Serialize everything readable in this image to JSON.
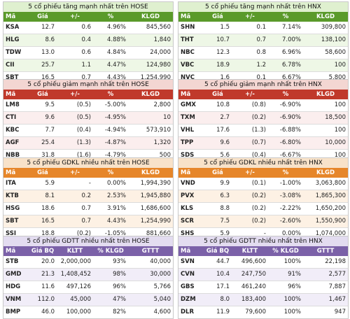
{
  "panels": [
    {
      "id": "up-hose",
      "theme": "green",
      "title": "5 cổ phiếu tăng mạnh nhất trên HOSE",
      "headers": [
        "Mã",
        "Giá",
        "+/-",
        "%",
        "KLGD"
      ],
      "rows": [
        [
          "KSA",
          "12.7",
          "0.6",
          "4.96%",
          "845,560"
        ],
        [
          "HLG",
          "8.6",
          "0.4",
          "4.88%",
          "1,840"
        ],
        [
          "TDW",
          "13.0",
          "0.6",
          "4.84%",
          "24,000"
        ],
        [
          "CII",
          "25.7",
          "1.1",
          "4.47%",
          "124,980"
        ],
        [
          "SBT",
          "16.5",
          "0.7",
          "4.43%",
          "1,254,990"
        ]
      ]
    },
    {
      "id": "up-hnx",
      "theme": "green",
      "title": "5 cổ phiếu tăng mạnh nhất trên HNX",
      "headers": [
        "Mã",
        "Giá",
        "+/-",
        "%",
        "KLGD"
      ],
      "rows": [
        [
          "SHN",
          "1.5",
          "0.1",
          "7.14%",
          "309,800"
        ],
        [
          "THT",
          "10.7",
          "0.7",
          "7.00%",
          "138,100"
        ],
        [
          "NBC",
          "12.3",
          "0.8",
          "6.96%",
          "58,600"
        ],
        [
          "VBC",
          "18.9",
          "1.2",
          "6.78%",
          "100"
        ],
        [
          "NVC",
          "1.6",
          "0.1",
          "6.67%",
          "5,800"
        ]
      ]
    },
    {
      "id": "down-hose",
      "theme": "red",
      "title": "5 cổ phiếu giảm mạnh nhất trên HOSE",
      "headers": [
        "Mã",
        "Giá",
        "+/-",
        "%",
        "KLGD"
      ],
      "rows": [
        [
          "LM8",
          "9.5",
          "(0.5)",
          "-5.00%",
          "2,800"
        ],
        [
          "CTI",
          "9.6",
          "(0.5)",
          "-4.95%",
          "10"
        ],
        [
          "KBC",
          "7.7",
          "(0.4)",
          "-4.94%",
          "573,910"
        ],
        [
          "AGF",
          "25.4",
          "(1.3)",
          "-4.87%",
          "1,320"
        ],
        [
          "NBB",
          "31.8",
          "(1.6)",
          "-4.79%",
          "500"
        ]
      ]
    },
    {
      "id": "down-hnx",
      "theme": "red",
      "title": "5 cổ phiếu giảm mạnh nhất trên HNX",
      "headers": [
        "Mã",
        "Giá",
        "+/-",
        "%",
        "KLGD"
      ],
      "rows": [
        [
          "GMX",
          "10.8",
          "(0.8)",
          "-6.90%",
          "100"
        ],
        [
          "TXM",
          "2.7",
          "(0.2)",
          "-6.90%",
          "18,500"
        ],
        [
          "VHL",
          "17.6",
          "(1.3)",
          "-6.88%",
          "100"
        ],
        [
          "TPP",
          "9.6",
          "(0.7)",
          "-6.80%",
          "10,000"
        ],
        [
          "SDS",
          "5.6",
          "(0.4)",
          "-6.67%",
          "100"
        ]
      ]
    },
    {
      "id": "vol-hose",
      "theme": "orange",
      "title": "5 cổ phiếu GDKL nhiều nhất trên HOSE",
      "headers": [
        "Mã",
        "Giá",
        "+/-",
        "%",
        "KLGD"
      ],
      "rows": [
        [
          "ITA",
          "5.9",
          "-",
          "0.00%",
          "1,994,390"
        ],
        [
          "KTB",
          "8.1",
          "0.2",
          "2.53%",
          "1,945,880"
        ],
        [
          "HSG",
          "18.6",
          "0.7",
          "3.91%",
          "1,686,600"
        ],
        [
          "SBT",
          "16.5",
          "0.7",
          "4.43%",
          "1,254,990"
        ],
        [
          "SSI",
          "18.8",
          "(0.2)",
          "-1.05%",
          "881,660"
        ]
      ]
    },
    {
      "id": "vol-hnx",
      "theme": "orange",
      "title": "5 cổ phiếu GDKL nhiều nhất trên HNX",
      "headers": [
        "Mã",
        "Giá",
        "+/-",
        "%",
        "KLGD"
      ],
      "rows": [
        [
          "VND",
          "9.9",
          "(0.1)",
          "-1.00%",
          "3,063,800"
        ],
        [
          "PVX",
          "6.3",
          "(0.2)",
          "-3.08%",
          "1,865,300"
        ],
        [
          "KLS",
          "8.8",
          "(0.2)",
          "-2.22%",
          "1,650,200"
        ],
        [
          "SCR",
          "7.5",
          "(0.2)",
          "-2.60%",
          "1,550,900"
        ],
        [
          "SHS",
          "5.9",
          "-",
          "0.00%",
          "1,074,000"
        ]
      ]
    },
    {
      "id": "deal-hose",
      "theme": "purple",
      "title": "5 cổ phiếu GDTT nhiều nhất trên HOSE",
      "headers": [
        "Mã",
        "Giá BQ",
        "KLTT",
        "% KLGD",
        "GTTT"
      ],
      "rows": [
        [
          "STB",
          "20.0",
          "2,000,000",
          "93%",
          "40,000"
        ],
        [
          "GMD",
          "21.3",
          "1,408,452",
          "98%",
          "30,000"
        ],
        [
          "HDG",
          "11.6",
          "497,126",
          "96%",
          "5,766"
        ],
        [
          "VNM",
          "112.0",
          "45,000",
          "47%",
          "5,040"
        ],
        [
          "BMP",
          "46.0",
          "100,000",
          "82%",
          "4,600"
        ]
      ]
    },
    {
      "id": "deal-hnx",
      "theme": "purple",
      "title": "5 cổ phiếu GDTT nhiều nhất trên HNX",
      "headers": [
        "Mã",
        "Giá BQ",
        "KLTT",
        "% KLGD",
        "GTTT"
      ],
      "rows": [
        [
          "SVN",
          "44.7",
          "496,600",
          "100%",
          "22,198"
        ],
        [
          "CVN",
          "10.4",
          "247,750",
          "91%",
          "2,577"
        ],
        [
          "GBS",
          "17.1",
          "461,240",
          "96%",
          "7,887"
        ],
        [
          "DZM",
          "8.0",
          "183,400",
          "100%",
          "1,467"
        ],
        [
          "DLR",
          "11.9",
          "79,600",
          "100%",
          "947"
        ]
      ]
    }
  ]
}
